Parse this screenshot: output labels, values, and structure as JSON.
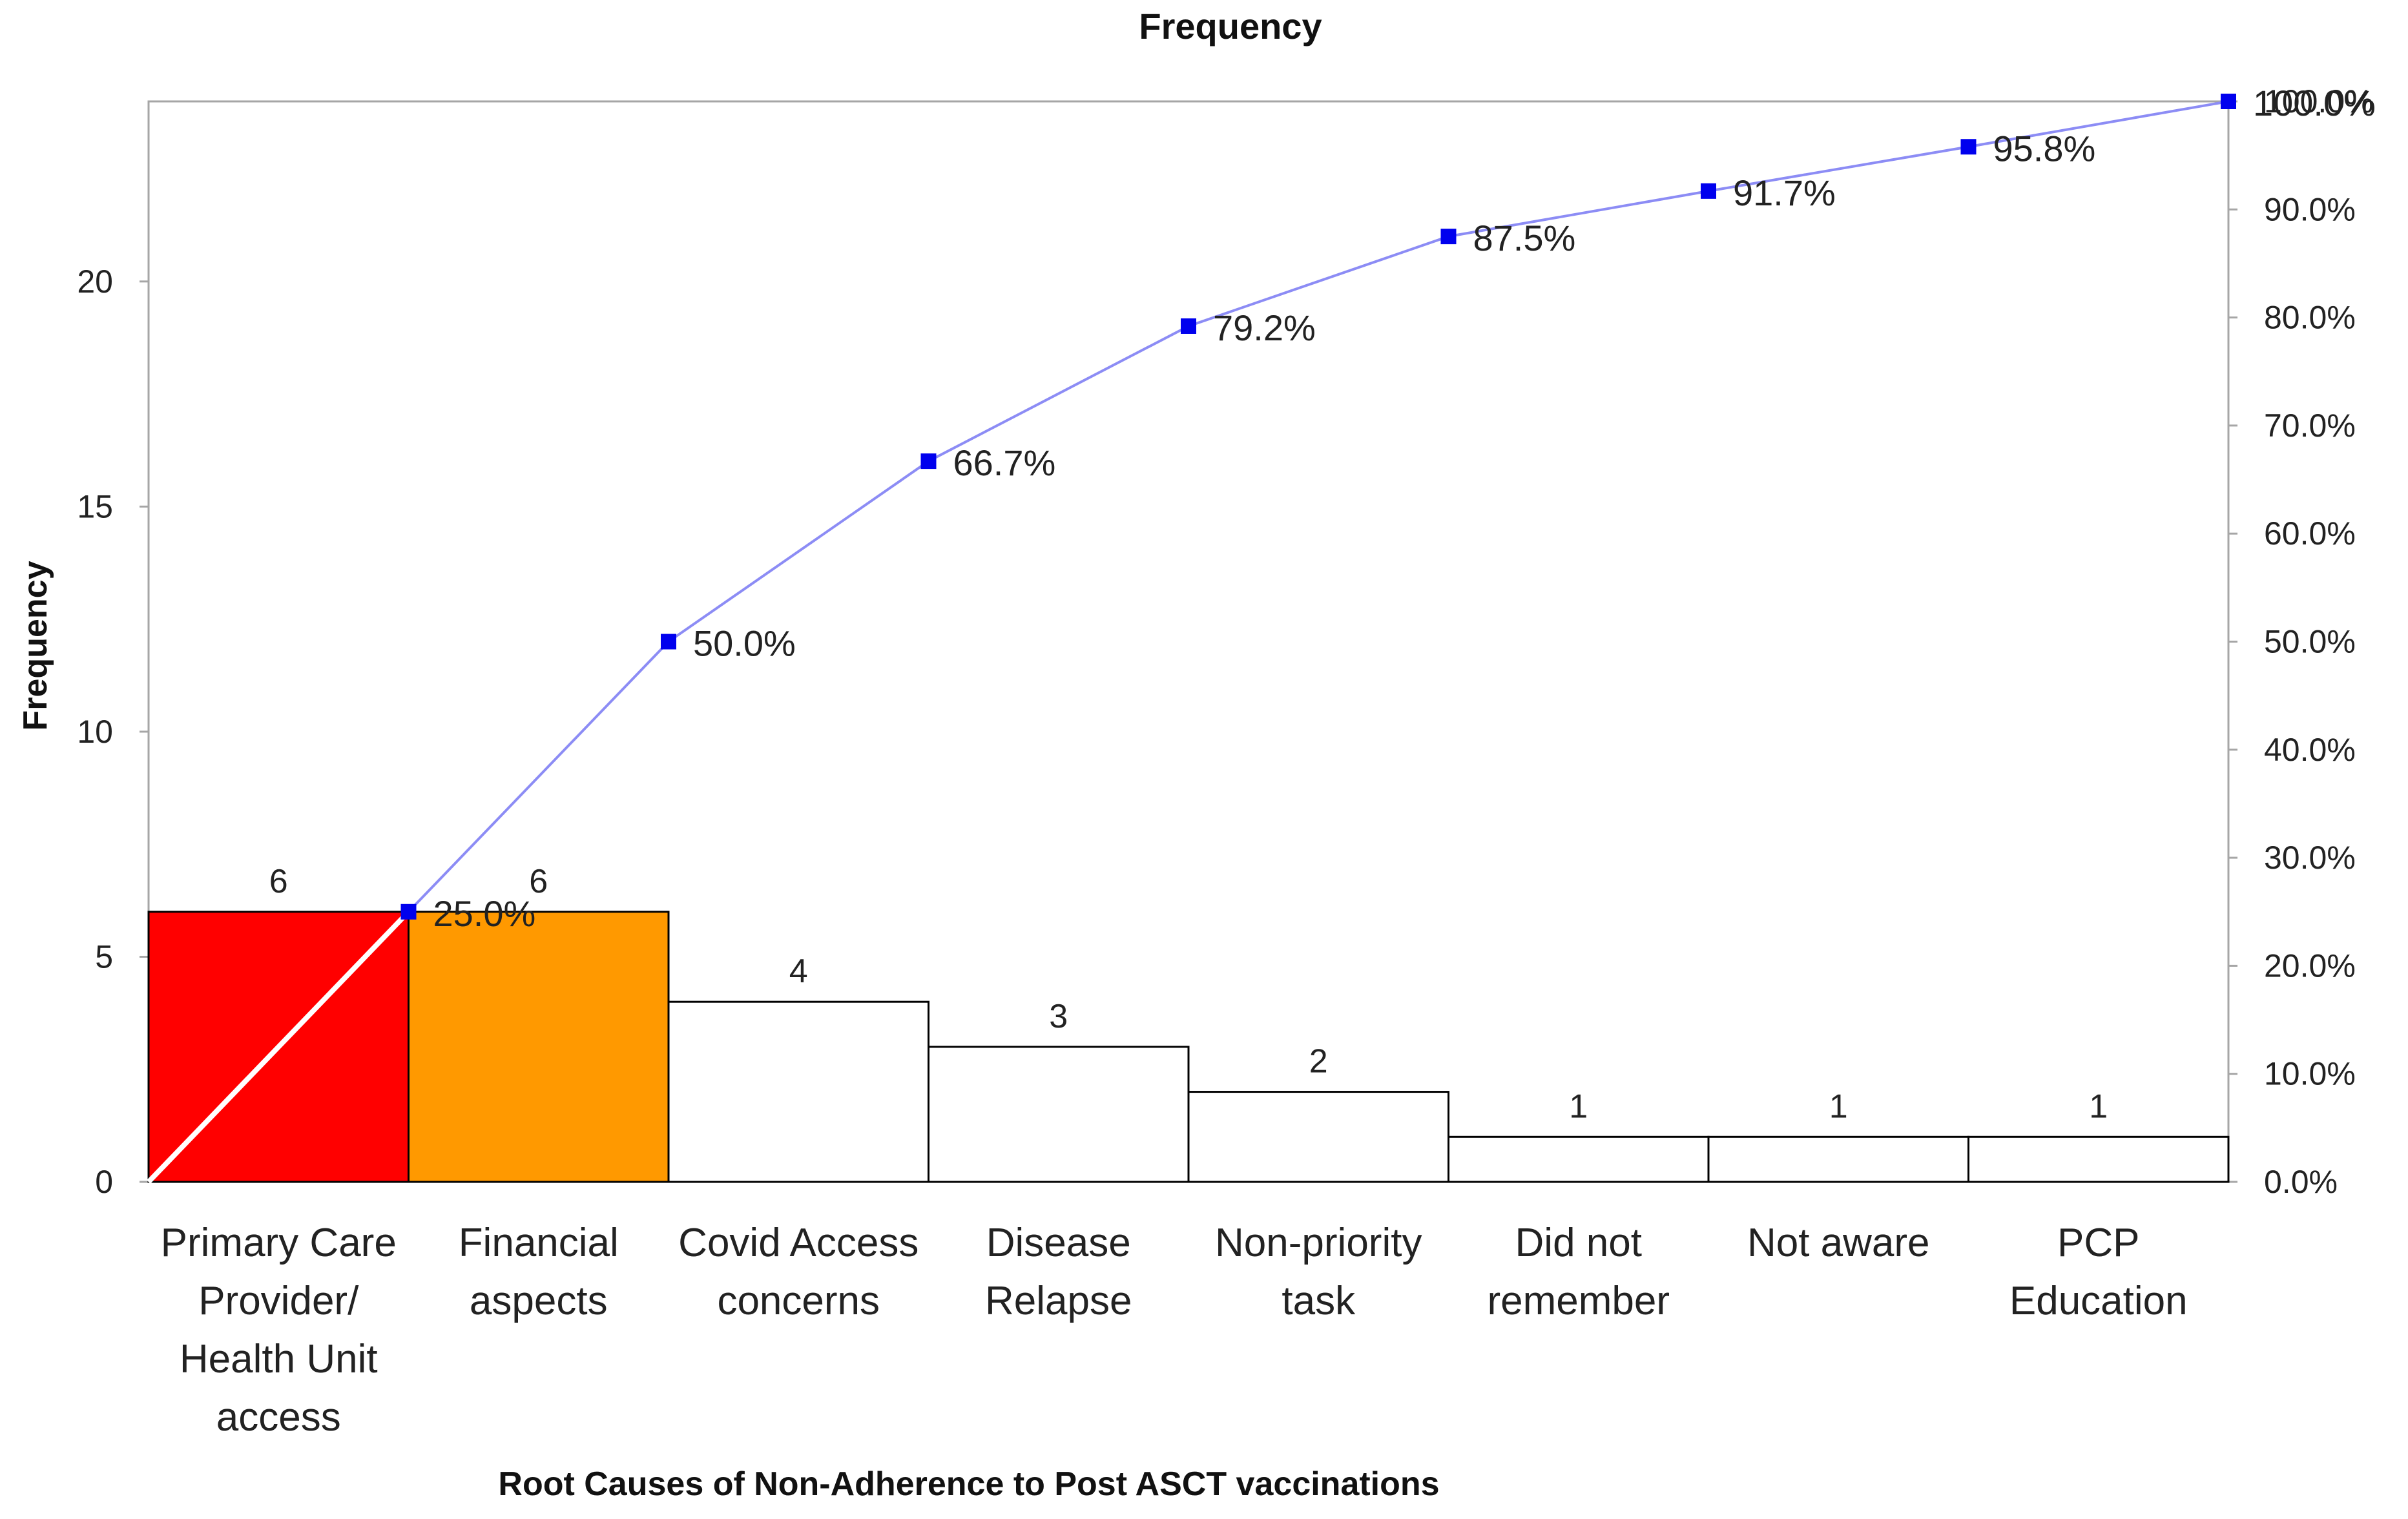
{
  "chart_data": {
    "type": "bar",
    "subtype": "pareto",
    "title": "Frequency",
    "xlabel": "Root Causes of Non-Adherence to Post ASCT vaccinations",
    "ylabel": "Frequency",
    "y2label": "",
    "categories": [
      [
        "Primary Care",
        "Provider/",
        "Health Unit",
        "access"
      ],
      [
        "Financial",
        "aspects"
      ],
      [
        "Covid Access",
        "concerns"
      ],
      [
        "Disease",
        "Relapse"
      ],
      [
        "Non-priority",
        "task"
      ],
      [
        "Did not",
        "remember"
      ],
      [
        "Not aware"
      ],
      [
        "PCP",
        "Education"
      ]
    ],
    "series": [
      {
        "type": "bar",
        "values": [
          6,
          6,
          4,
          3,
          2,
          1,
          1,
          1
        ],
        "value_labels": [
          "6",
          "6",
          "4",
          "3",
          "2",
          "1",
          "1",
          "1"
        ],
        "colors": [
          "#ff0000",
          "#ff9900",
          "#ffffff",
          "#ffffff",
          "#ffffff",
          "#ffffff",
          "#ffffff",
          "#ffffff"
        ]
      },
      {
        "type": "line",
        "axis": "y2",
        "color": "#0000ee",
        "line_color": "#8c8cf5",
        "values": [
          25.0,
          50.0,
          66.7,
          79.2,
          87.5,
          91.7,
          95.8,
          100.0
        ],
        "value_labels": [
          "25.0%",
          "50.0%",
          "66.7%",
          "79.2%",
          "87.5%",
          "91.7%",
          "95.8%",
          "100.0%"
        ]
      }
    ],
    "ylim": [
      0,
      24
    ],
    "yticks": [
      "0",
      "5",
      "10",
      "15",
      "20"
    ],
    "yticks_values": [
      0,
      5,
      10,
      15,
      20
    ],
    "y2lim": [
      0,
      100
    ],
    "y2ticks": [
      "0.0%",
      "10.0%",
      "20.0%",
      "30.0%",
      "40.0%",
      "50.0%",
      "60.0%",
      "70.0%",
      "80.0%",
      "90.0%",
      "100.0%"
    ],
    "y2ticks_values": [
      0,
      10,
      20,
      30,
      40,
      50,
      60,
      70,
      80,
      90,
      100
    ],
    "diagonal_line_color": "#ffffff",
    "grid": false,
    "legend": "none"
  }
}
